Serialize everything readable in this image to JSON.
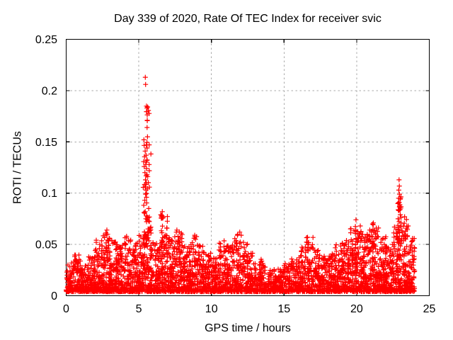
{
  "chart_data": {
    "type": "scatter",
    "title": "Day 339 of 2020, Rate Of TEC Index for receiver svic",
    "xlabel": "GPS time / hours",
    "ylabel": "ROTI / TECUs",
    "xlim": [
      0,
      25
    ],
    "ylim": [
      0,
      0.25
    ],
    "xticks": [
      0,
      5,
      10,
      15,
      20,
      25
    ],
    "xtick_labels": [
      "0",
      "5",
      "10",
      "15",
      "20",
      "25"
    ],
    "yticks": [
      0,
      0.05,
      0.1,
      0.15,
      0.2,
      0.25
    ],
    "ytick_labels": [
      "0",
      "0.05",
      "0.1",
      "0.15",
      "0.2",
      "0.25"
    ],
    "legend": "none",
    "grid": {
      "show": true,
      "style": "dashed",
      "color": "#a8a8a8",
      "dash": [
        2.5,
        3.5
      ]
    },
    "axis_color": "#000000",
    "background": "#ffffff",
    "marker": {
      "glyph": "+",
      "color": "#ff0000",
      "size": 7,
      "stroke_width": 1.2
    },
    "data_x_range": [
      0,
      24.05
    ],
    "max_point": [
      5.45,
      0.213
    ],
    "secondary_max_point": [
      22.92,
      0.113
    ],
    "scatter_model": {
      "comment_band": "dense background band of ROTI values; bins are [hour_center, band_y_max, point_count], bin width 0.5 h, floor 0.004 TECU",
      "y_floor": 0.004,
      "bin_width": 0.5,
      "band_bins": [
        [
          0.25,
          0.032,
          75
        ],
        [
          0.75,
          0.042,
          75
        ],
        [
          1.25,
          0.03,
          75
        ],
        [
          1.75,
          0.038,
          80
        ],
        [
          2.25,
          0.055,
          86
        ],
        [
          2.75,
          0.062,
          92
        ],
        [
          3.25,
          0.058,
          92
        ],
        [
          3.75,
          0.05,
          86
        ],
        [
          4.25,
          0.058,
          86
        ],
        [
          4.75,
          0.052,
          86
        ],
        [
          5.25,
          0.06,
          92
        ],
        [
          5.75,
          0.062,
          92
        ],
        [
          6.25,
          0.052,
          86
        ],
        [
          6.75,
          0.078,
          92
        ],
        [
          7.25,
          0.058,
          92
        ],
        [
          7.75,
          0.063,
          92
        ],
        [
          8.25,
          0.048,
          86
        ],
        [
          8.75,
          0.058,
          86
        ],
        [
          9.25,
          0.052,
          86
        ],
        [
          9.75,
          0.042,
          80
        ],
        [
          10.25,
          0.038,
          80
        ],
        [
          10.75,
          0.055,
          86
        ],
        [
          11.25,
          0.05,
          86
        ],
        [
          11.75,
          0.062,
          92
        ],
        [
          12.25,
          0.055,
          86
        ],
        [
          12.75,
          0.042,
          80
        ],
        [
          13.25,
          0.036,
          75
        ],
        [
          13.75,
          0.032,
          70
        ],
        [
          14.25,
          0.026,
          63
        ],
        [
          14.75,
          0.026,
          63
        ],
        [
          15.25,
          0.032,
          70
        ],
        [
          15.75,
          0.036,
          75
        ],
        [
          16.25,
          0.048,
          86
        ],
        [
          16.75,
          0.057,
          86
        ],
        [
          17.25,
          0.045,
          80
        ],
        [
          17.75,
          0.04,
          80
        ],
        [
          18.25,
          0.042,
          80
        ],
        [
          18.75,
          0.05,
          86
        ],
        [
          19.25,
          0.055,
          86
        ],
        [
          19.75,
          0.068,
          92
        ],
        [
          20.25,
          0.064,
          92
        ],
        [
          20.75,
          0.06,
          92
        ],
        [
          21.25,
          0.07,
          92
        ],
        [
          21.75,
          0.062,
          92
        ],
        [
          22.25,
          0.058,
          92
        ],
        [
          22.75,
          0.072,
          92
        ],
        [
          23.25,
          0.07,
          92
        ],
        [
          23.75,
          0.058,
          86
        ]
      ],
      "clusters": [
        {
          "x0": 5.3,
          "x1": 5.85,
          "y0": 0.055,
          "y1": 0.148,
          "n": 55,
          "skew": 1.7
        },
        {
          "x0": 5.5,
          "x1": 5.8,
          "y0": 0.148,
          "y1": 0.185,
          "n": 8,
          "skew": 1.0
        },
        {
          "x0": 22.82,
          "x1": 23.1,
          "y0": 0.05,
          "y1": 0.1,
          "n": 28,
          "skew": 1.5
        },
        {
          "x0": 6.5,
          "x1": 6.78,
          "y0": 0.045,
          "y1": 0.08,
          "n": 14,
          "skew": 1.3
        },
        {
          "x0": 19.85,
          "x1": 20.1,
          "y0": 0.045,
          "y1": 0.072,
          "n": 10,
          "skew": 1.2
        },
        {
          "x0": 21.05,
          "x1": 21.3,
          "y0": 0.045,
          "y1": 0.07,
          "n": 10,
          "skew": 1.2
        },
        {
          "x0": 23.2,
          "x1": 23.45,
          "y0": 0.045,
          "y1": 0.075,
          "n": 10,
          "skew": 1.2
        },
        {
          "x0": 2.7,
          "x1": 2.95,
          "y0": 0.04,
          "y1": 0.063,
          "n": 8,
          "skew": 1.2
        }
      ],
      "outlier_points": [
        [
          5.45,
          0.213
        ],
        [
          5.47,
          0.206
        ],
        [
          5.56,
          0.183
        ],
        [
          5.58,
          0.171
        ],
        [
          5.57,
          0.164
        ],
        [
          5.6,
          0.155
        ],
        [
          5.35,
          0.152
        ],
        [
          5.52,
          0.147
        ],
        [
          5.57,
          0.144
        ],
        [
          5.44,
          0.141
        ],
        [
          5.5,
          0.137
        ],
        [
          5.55,
          0.132
        ],
        [
          5.48,
          0.128
        ],
        [
          5.53,
          0.124
        ],
        [
          5.42,
          0.12
        ],
        [
          5.5,
          0.117
        ],
        [
          5.46,
          0.113
        ],
        [
          5.52,
          0.11
        ],
        [
          5.44,
          0.106
        ],
        [
          5.49,
          0.103
        ],
        [
          5.47,
          0.099
        ],
        [
          5.53,
          0.096
        ],
        [
          5.41,
          0.093
        ],
        [
          22.92,
          0.113
        ],
        [
          22.94,
          0.107
        ],
        [
          22.9,
          0.103
        ],
        [
          22.95,
          0.099
        ],
        [
          22.89,
          0.095
        ],
        [
          22.93,
          0.091
        ],
        [
          22.96,
          0.087
        ],
        [
          22.9,
          0.083
        ],
        [
          23.0,
          0.079
        ],
        [
          22.85,
          0.075
        ],
        [
          23.05,
          0.071
        ],
        [
          6.62,
          0.082
        ],
        [
          6.6,
          0.078
        ],
        [
          19.95,
          0.074
        ],
        [
          21.15,
          0.071
        ],
        [
          23.3,
          0.077
        ],
        [
          20.25,
          0.068
        ],
        [
          2.8,
          0.064
        ],
        [
          7.62,
          0.064
        ],
        [
          11.95,
          0.062
        ],
        [
          16.62,
          0.057
        ],
        [
          8.85,
          0.059
        ],
        [
          12.05,
          0.059
        ],
        [
          23.55,
          0.068
        ],
        [
          22.6,
          0.067
        ],
        [
          21.5,
          0.066
        ],
        [
          20.9,
          0.064
        ]
      ]
    }
  }
}
